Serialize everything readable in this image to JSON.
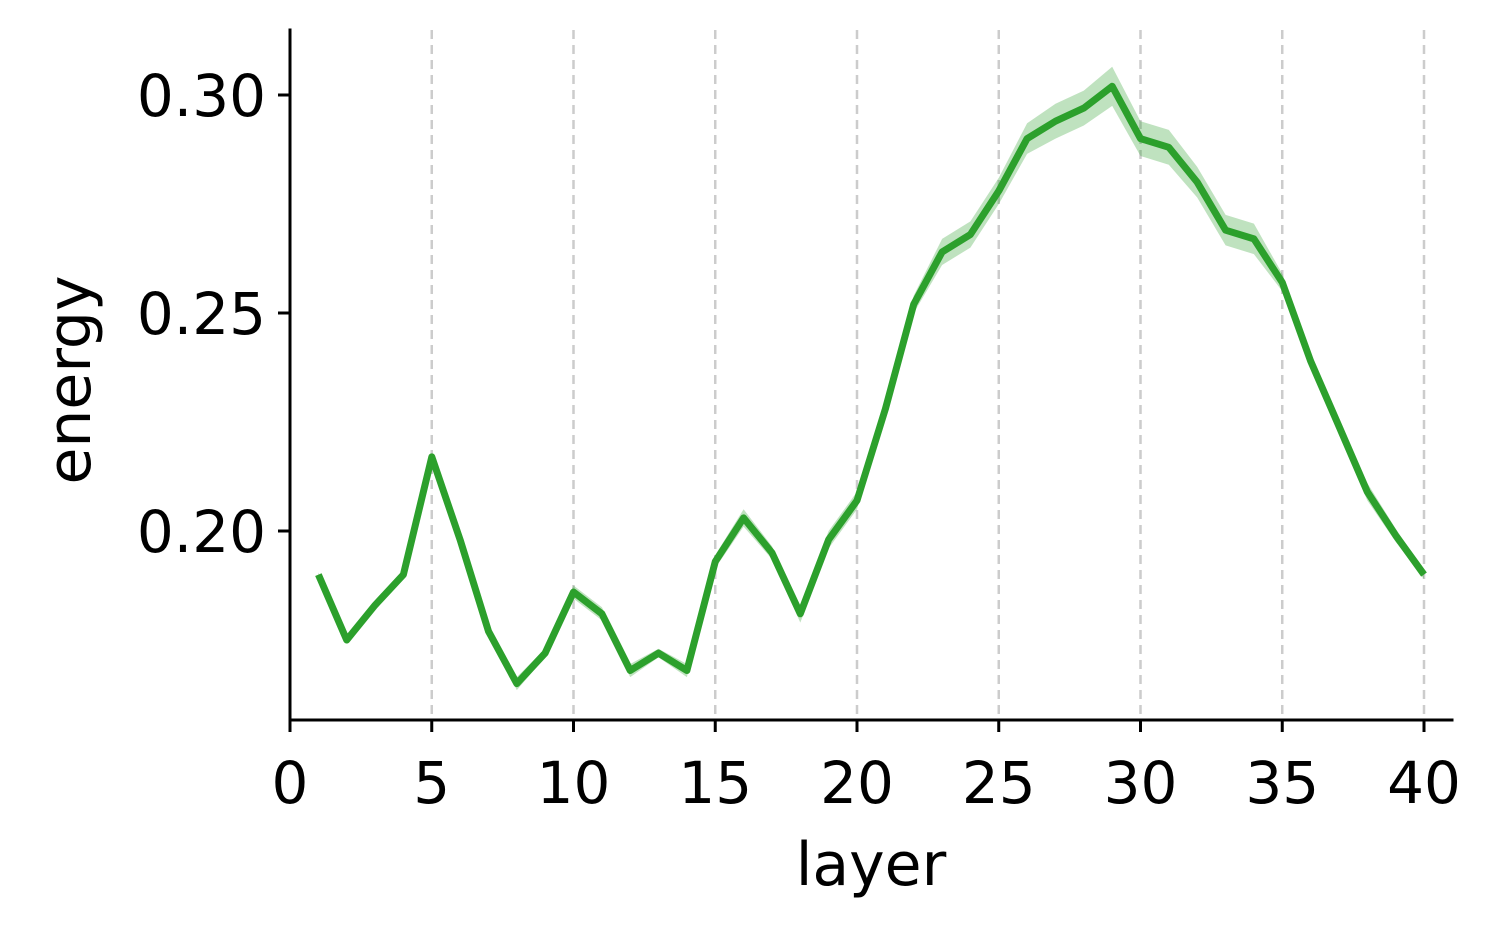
{
  "chart_data": {
    "type": "line",
    "xlabel": "layer",
    "ylabel": "energy",
    "xlim": [
      0,
      41
    ],
    "ylim": [
      0.1585,
      0.3165
    ],
    "x_ticks": [
      0,
      5,
      10,
      15,
      20,
      25,
      30,
      35,
      40
    ],
    "x_tick_labels": [
      "0",
      "5",
      "10",
      "15",
      "20",
      "25",
      "30",
      "35",
      "40"
    ],
    "y_ticks": [
      0.2,
      0.25,
      0.3
    ],
    "y_tick_labels": [
      "0.20",
      "0.25",
      "0.30"
    ],
    "grid": "vertical dashed lines at x ticks",
    "legend": "none",
    "series": [
      {
        "color": "#2ca02c",
        "x": [
          1,
          2,
          3,
          4,
          5,
          6,
          7,
          8,
          9,
          10,
          11,
          12,
          13,
          14,
          15,
          16,
          17,
          18,
          19,
          20,
          21,
          22,
          23,
          24,
          25,
          26,
          27,
          28,
          29,
          30,
          31,
          32,
          33,
          34,
          35,
          36,
          37,
          38,
          39,
          40
        ],
        "y": [
          0.19,
          0.175,
          0.183,
          0.19,
          0.217,
          0.198,
          0.177,
          0.165,
          0.172,
          0.186,
          0.181,
          0.168,
          0.172,
          0.168,
          0.193,
          0.203,
          0.195,
          0.181,
          0.198,
          0.207,
          0.228,
          0.252,
          0.264,
          0.268,
          0.278,
          0.29,
          0.294,
          0.297,
          0.302,
          0.29,
          0.288,
          0.28,
          0.269,
          0.267,
          0.257,
          0.239,
          0.224,
          0.209,
          0.199,
          0.19
        ],
        "band": [
          0.0005,
          0.0005,
          0.0005,
          0.0005,
          0.0005,
          0.0005,
          0.0005,
          0.0015,
          0.001,
          0.0015,
          0.0015,
          0.0015,
          0.001,
          0.0015,
          0.0015,
          0.002,
          0.0015,
          0.002,
          0.002,
          0.002,
          0.002,
          0.002,
          0.003,
          0.003,
          0.003,
          0.0035,
          0.004,
          0.004,
          0.0045,
          0.004,
          0.004,
          0.0035,
          0.0035,
          0.0035,
          0.002,
          0.0015,
          0.002,
          0.002,
          0.0015,
          0.001
        ]
      }
    ]
  }
}
